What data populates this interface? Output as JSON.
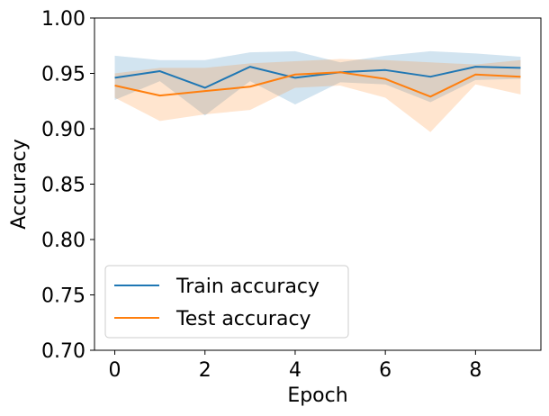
{
  "chart_data": {
    "type": "line",
    "title": "",
    "xlabel": "Epoch",
    "ylabel": "Accuracy",
    "xlim": [
      -0.45,
      9.45
    ],
    "ylim": [
      0.7,
      1.0
    ],
    "xticks": [
      0,
      2,
      4,
      6,
      8
    ],
    "yticks": [
      0.7,
      0.75,
      0.8,
      0.85,
      0.9,
      0.95,
      1.0
    ],
    "xtick_labels": [
      "0",
      "2",
      "4",
      "6",
      "8"
    ],
    "ytick_labels": [
      "0.70",
      "0.75",
      "0.80",
      "0.85",
      "0.90",
      "0.95",
      "1.00"
    ],
    "grid": false,
    "legend_position": "lower-left",
    "x": [
      0,
      1,
      2,
      3,
      4,
      5,
      6,
      7,
      8,
      9
    ],
    "series": [
      {
        "name": "Train accuracy",
        "color": "#1f77b4",
        "values": [
          0.946,
          0.952,
          0.937,
          0.956,
          0.946,
          0.951,
          0.953,
          0.947,
          0.956,
          0.955
        ],
        "band_upper": [
          0.966,
          0.962,
          0.962,
          0.969,
          0.97,
          0.96,
          0.966,
          0.97,
          0.968,
          0.965
        ],
        "band_lower": [
          0.926,
          0.943,
          0.912,
          0.943,
          0.922,
          0.942,
          0.94,
          0.924,
          0.944,
          0.945
        ]
      },
      {
        "name": "Test accuracy",
        "color": "#ff7f0e",
        "values": [
          0.939,
          0.93,
          0.934,
          0.938,
          0.949,
          0.951,
          0.945,
          0.929,
          0.949,
          0.947
        ],
        "band_upper": [
          0.95,
          0.955,
          0.955,
          0.959,
          0.961,
          0.963,
          0.962,
          0.96,
          0.958,
          0.962
        ],
        "band_lower": [
          0.928,
          0.907,
          0.913,
          0.917,
          0.937,
          0.939,
          0.928,
          0.897,
          0.94,
          0.931
        ]
      }
    ]
  }
}
